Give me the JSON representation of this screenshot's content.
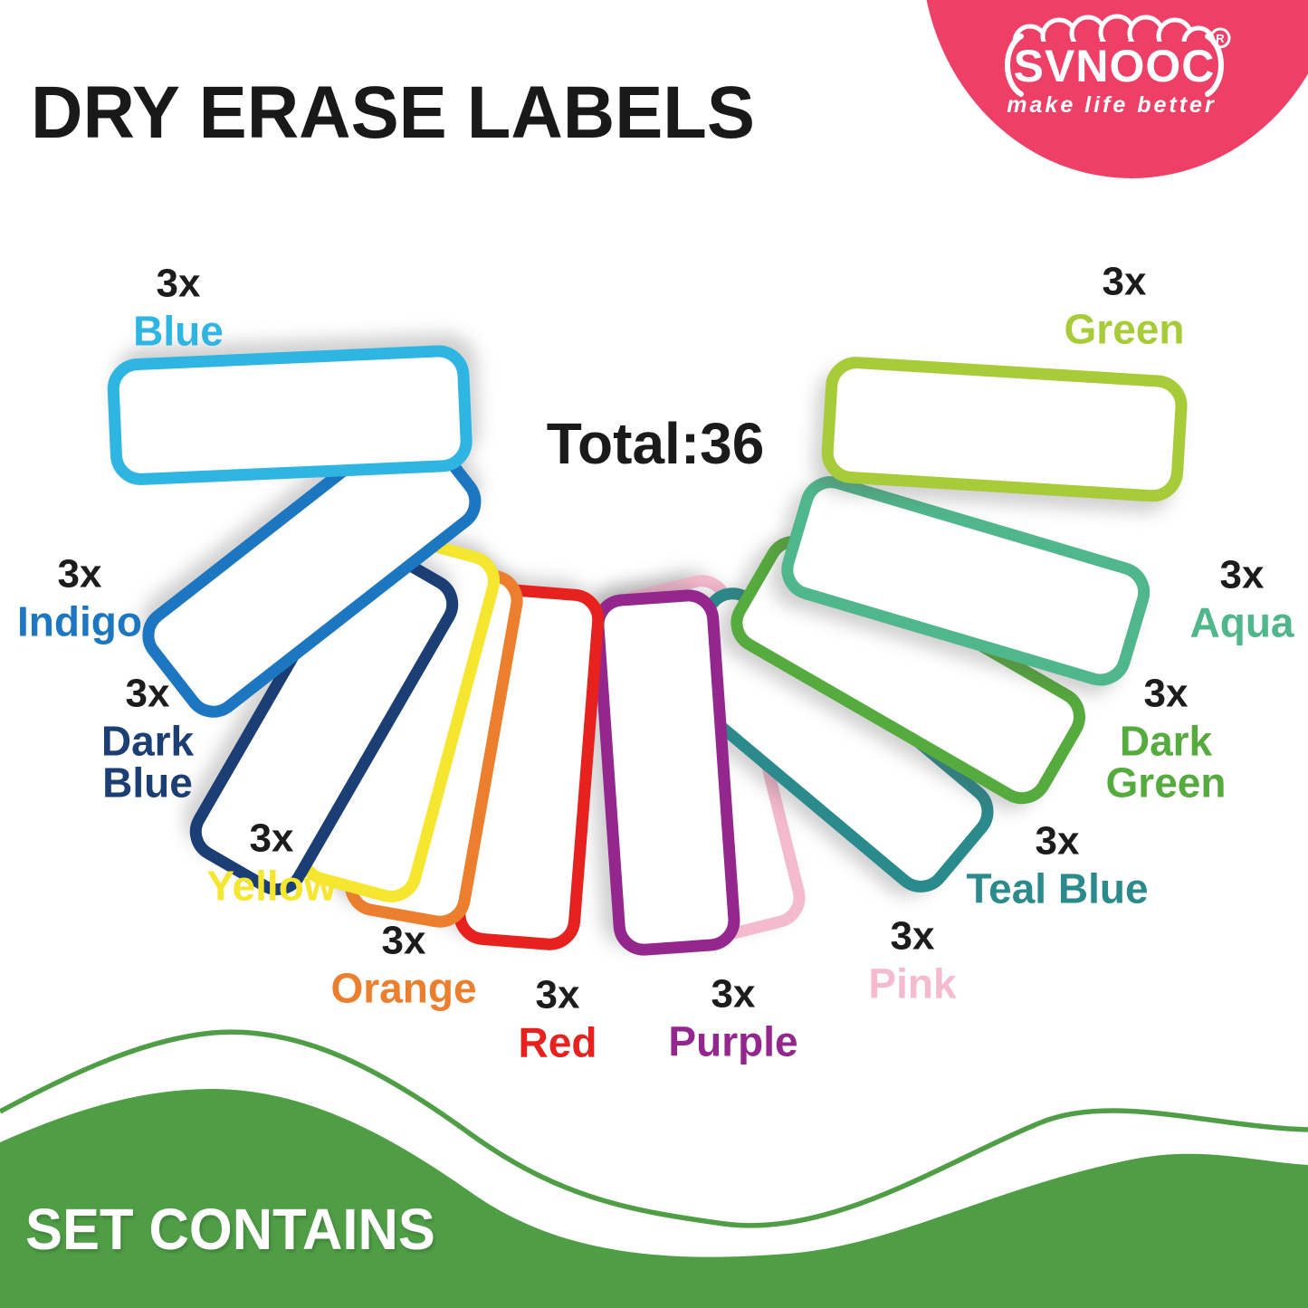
{
  "page": {
    "title": "DRY ERASE LABELS",
    "total": "Total:36",
    "footer_heading": "SET CONTAINS",
    "wave_color": "#4F9E46"
  },
  "brand": {
    "name": "SVNOOC",
    "registered_mark": "R",
    "tagline": "make life better",
    "badge_color": "#EE4066",
    "text_color": "#ffffff"
  },
  "labels": [
    {
      "count": "3x",
      "name": "Blue",
      "color": "#2FB5E2"
    },
    {
      "count": "3x",
      "name": "Indigo",
      "color": "#1C76C0"
    },
    {
      "count": "3x",
      "name": "Dark Blue",
      "name_lines": [
        "Dark",
        "Blue"
      ],
      "color": "#1B3E74"
    },
    {
      "count": "3x",
      "name": "Yellow",
      "color": "#F5E72F"
    },
    {
      "count": "3x",
      "name": "Orange",
      "color": "#EC7F2E"
    },
    {
      "count": "3x",
      "name": "Red",
      "color": "#E6211E"
    },
    {
      "count": "3x",
      "name": "Purple",
      "color": "#93278E"
    },
    {
      "count": "3x",
      "name": "Pink",
      "color": "#F4BACD"
    },
    {
      "count": "3x",
      "name": "Teal Blue",
      "color": "#2B8A8B"
    },
    {
      "count": "3x",
      "name": "Dark Green",
      "name_lines": [
        "Dark",
        "Green"
      ],
      "color": "#55AB3D"
    },
    {
      "count": "3x",
      "name": "Aqua",
      "color": "#50B68B"
    },
    {
      "count": "3x",
      "name": "Green",
      "color": "#A8CB39"
    }
  ]
}
